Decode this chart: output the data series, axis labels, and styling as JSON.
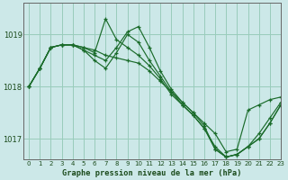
{
  "title": "Graphe pression niveau de la mer (hPa)",
  "bg_color": "#cce8e8",
  "grid_color": "#99ccbb",
  "line_color": "#1a6b2a",
  "ylim": [
    1016.6,
    1019.6
  ],
  "xlim": [
    -0.5,
    23
  ],
  "yticks": [
    1017,
    1018,
    1019
  ],
  "xticks": [
    0,
    1,
    2,
    3,
    4,
    5,
    6,
    7,
    8,
    9,
    10,
    11,
    12,
    13,
    14,
    15,
    16,
    17,
    18,
    19,
    20,
    21,
    22,
    23
  ],
  "series": [
    [
      1018.0,
      1018.35,
      1018.75,
      1018.8,
      1018.8,
      1018.75,
      1018.7,
      1018.6,
      1018.55,
      1018.5,
      1018.45,
      1018.3,
      1018.1,
      1017.9,
      1017.7,
      1017.5,
      1017.3,
      1017.1,
      1016.75,
      1016.8,
      1017.55,
      1017.65,
      1017.75,
      1017.8
    ],
    [
      1018.0,
      1018.35,
      1018.75,
      1018.8,
      1018.8,
      1018.75,
      1018.65,
      1019.3,
      1018.9,
      1018.75,
      1018.6,
      1018.4,
      1018.15,
      1017.85,
      1017.65,
      1017.45,
      1017.2,
      1016.85,
      1016.65,
      1016.7,
      1016.85,
      1017.1,
      1017.4,
      1017.7
    ],
    [
      1018.0,
      1018.35,
      1018.75,
      1018.8,
      1018.8,
      1018.7,
      1018.6,
      1018.5,
      1018.75,
      1019.05,
      1019.15,
      1018.75,
      1018.3,
      1017.95,
      1017.7,
      1017.5,
      1017.25,
      1016.8,
      1016.65,
      1016.7,
      1016.85,
      1017.0,
      1017.3,
      1017.65
    ],
    [
      1018.0,
      1018.35,
      1018.75,
      1018.8,
      1018.8,
      1018.7,
      1018.5,
      1018.35,
      1018.65,
      1019.0,
      1018.85,
      1018.5,
      1018.2,
      1017.9,
      1017.65,
      1017.45,
      1017.2,
      1016.8,
      1016.65,
      1016.7,
      1016.85,
      1017.0,
      1017.3,
      1017.65
    ]
  ]
}
